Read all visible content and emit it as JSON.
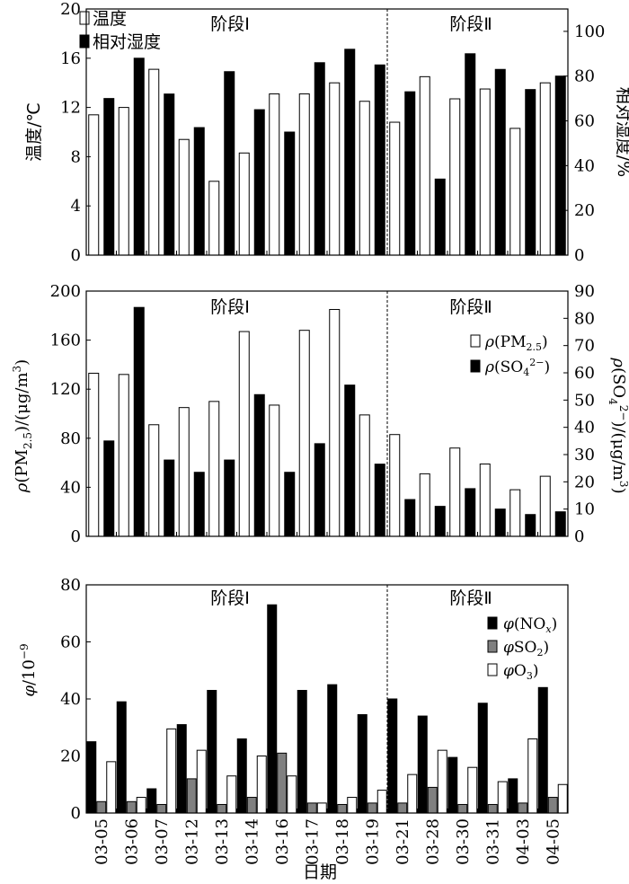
{
  "chart_data": [
    {
      "type": "bar",
      "categories": [
        "03-05",
        "03-06",
        "03-07",
        "03-12",
        "03-13",
        "03-14",
        "03-16",
        "03-17",
        "03-18",
        "03-19",
        "03-21",
        "03-28",
        "03-30",
        "03-31",
        "04-03",
        "04-05"
      ],
      "stage_labels": [
        "阶段Ⅰ",
        "阶段Ⅱ"
      ],
      "ylabel": "温度/℃",
      "y2label": "相对湿度/%",
      "ylim": [
        0,
        20
      ],
      "y2lim": [
        0,
        110
      ],
      "yticks": [
        0,
        4,
        8,
        12,
        16,
        20
      ],
      "y2ticks": [
        0,
        20,
        40,
        60,
        80,
        100
      ],
      "legend": [
        "温度",
        "相对湿度"
      ],
      "series": [
        {
          "name": "温度",
          "axis": "left",
          "color": "#ffffff",
          "values": [
            11.4,
            12.0,
            15.1,
            9.4,
            6.0,
            8.3,
            13.1,
            13.1,
            14.0,
            12.5,
            10.8,
            14.5,
            12.7,
            13.5,
            10.3,
            14.0
          ]
        },
        {
          "name": "相对湿度",
          "axis": "right",
          "color": "#000000",
          "values": [
            70,
            88,
            72,
            57,
            82,
            65,
            55,
            86,
            92,
            85,
            73,
            34,
            90,
            83,
            74,
            80
          ]
        }
      ]
    },
    {
      "type": "bar",
      "categories": [
        "03-05",
        "03-06",
        "03-07",
        "03-12",
        "03-13",
        "03-14",
        "03-16",
        "03-17",
        "03-18",
        "03-19",
        "03-21",
        "03-28",
        "03-30",
        "03-31",
        "04-03",
        "04-05"
      ],
      "stage_labels": [
        "阶段Ⅰ",
        "阶段Ⅱ"
      ],
      "ylabel": "ρ(PM2.5)/(μg/m3)",
      "y2label": "ρ(SO42−)/(μg/m3)",
      "ylim": [
        0,
        200
      ],
      "y2lim": [
        0,
        90
      ],
      "yticks": [
        0,
        40,
        80,
        120,
        160,
        200
      ],
      "y2ticks": [
        0,
        10,
        20,
        30,
        40,
        50,
        60,
        70,
        80,
        90
      ],
      "legend": [
        "ρ(PM2.5)",
        "ρ(SO42−)"
      ],
      "series": [
        {
          "name": "ρ(PM2.5)",
          "axis": "left",
          "color": "#ffffff",
          "values": [
            133,
            132,
            91,
            105,
            110,
            167,
            107,
            168,
            185,
            99,
            83,
            51,
            72,
            59,
            38,
            49
          ]
        },
        {
          "name": "ρ(SO42−)",
          "axis": "right",
          "color": "#000000",
          "values": [
            35,
            84,
            28,
            23.5,
            28,
            52,
            23.5,
            34,
            55.5,
            26.5,
            13.5,
            11,
            17.5,
            10,
            8,
            9
          ]
        }
      ]
    },
    {
      "type": "bar",
      "categories": [
        "03-05",
        "03-06",
        "03-07",
        "03-12",
        "03-13",
        "03-14",
        "03-16",
        "03-17",
        "03-18",
        "03-19",
        "03-21",
        "03-28",
        "03-30",
        "03-31",
        "04-03",
        "04-05"
      ],
      "stage_labels": [
        "阶段Ⅰ",
        "阶段Ⅱ"
      ],
      "xlabel": "日期",
      "ylabel": "φ/10−9",
      "ylim": [
        0,
        80
      ],
      "yticks": [
        0,
        20,
        40,
        60,
        80
      ],
      "legend": [
        "φ(NOx)",
        "φSO2)",
        "φO3)"
      ],
      "series": [
        {
          "name": "φ(NOx)",
          "color": "#000000",
          "values": [
            25,
            39,
            8.5,
            31,
            43,
            26,
            73,
            43,
            45,
            34.5,
            40,
            34,
            19.5,
            38.5,
            12,
            44
          ]
        },
        {
          "name": "φSO2)",
          "color": "#808080",
          "values": [
            4,
            4,
            3,
            12,
            3,
            5.5,
            21,
            3.5,
            3,
            3.5,
            3.5,
            9,
            3,
            3,
            3.5,
            5.5
          ]
        },
        {
          "name": "φO3)",
          "color": "#ffffff",
          "values": [
            18,
            5.5,
            29.5,
            22,
            13,
            20,
            13,
            3.5,
            5.5,
            8,
            13.5,
            22,
            16,
            11,
            26,
            10
          ]
        }
      ]
    }
  ]
}
